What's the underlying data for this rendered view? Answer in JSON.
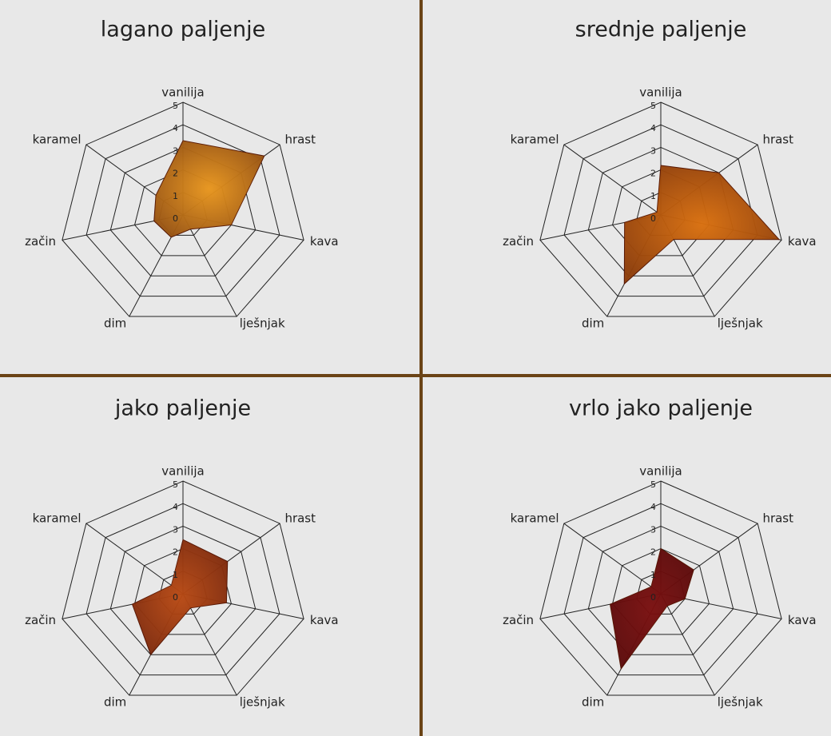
{
  "chart_data": [
    {
      "type": "radar",
      "title": "lagano paljenje",
      "categories": [
        "vanilija",
        "hrast",
        "kava",
        "lješnjak",
        "dim",
        "začin",
        "karamel"
      ],
      "values": [
        3.3,
        4.2,
        2.0,
        0.7,
        1.1,
        1.2,
        1.4
      ],
      "ylim": [
        0,
        5
      ],
      "yticks": [
        0,
        1,
        2,
        3,
        4,
        5
      ],
      "color": "#e8961e"
    },
    {
      "type": "radar",
      "title": "srednje paljenje",
      "categories": [
        "vanilija",
        "hrast",
        "kava",
        "lješnjak",
        "dim",
        "začin",
        "karamel"
      ],
      "values": [
        2.2,
        3.0,
        4.9,
        1.2,
        3.4,
        1.5,
        0.2
      ],
      "ylim": [
        0,
        5
      ],
      "yticks": [
        0,
        1,
        2,
        3,
        4,
        5
      ],
      "color": "#d9700f"
    },
    {
      "type": "radar",
      "title": "jako paljenje",
      "categories": [
        "vanilija",
        "hrast",
        "kava",
        "lješnjak",
        "dim",
        "začin",
        "karamel"
      ],
      "values": [
        2.4,
        2.3,
        1.8,
        0.7,
        3.0,
        2.1,
        0.6
      ],
      "ylim": [
        0,
        5
      ],
      "yticks": [
        0,
        1,
        2,
        3,
        4,
        5
      ],
      "color": "#b84a14"
    },
    {
      "type": "radar",
      "title": "vrlo jako paljenje",
      "categories": [
        "vanilija",
        "hrast",
        "kava",
        "lješnjak",
        "dim",
        "začin",
        "karamel"
      ],
      "values": [
        2.0,
        1.7,
        1.0,
        0.6,
        3.7,
        2.1,
        0.5
      ],
      "ylim": [
        0,
        5
      ],
      "yticks": [
        0,
        1,
        2,
        3,
        4,
        5
      ],
      "color": "#7a1010"
    }
  ]
}
